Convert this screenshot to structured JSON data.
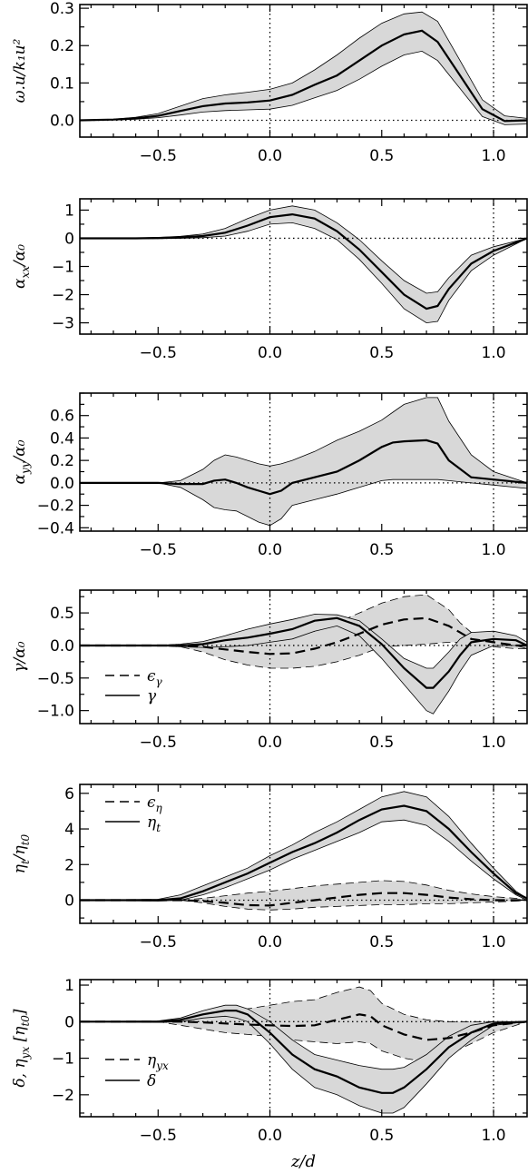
{
  "chart_data": [
    {
      "type": "line",
      "ylabel": "ω.u/k₁u²",
      "xlabel": "",
      "xlim": [
        -0.85,
        1.15
      ],
      "ylim": [
        -0.045,
        0.31
      ],
      "xticks": [
        -0.5,
        0.0,
        0.5,
        1.0
      ],
      "xtick_labels": [
        "−0.5",
        "0.0",
        "0.5",
        "1.0"
      ],
      "yticks": [
        0.0,
        0.1,
        0.2,
        0.3
      ],
      "ytick_labels": [
        "0.0",
        "0.1",
        "0.2",
        "0.3"
      ],
      "vlines": [
        0.0,
        1.0
      ],
      "hlines": [
        0.0
      ],
      "legend": [],
      "series": [
        {
          "style": "solid",
          "x": [
            -0.85,
            -0.7,
            -0.6,
            -0.5,
            -0.4,
            -0.3,
            -0.2,
            -0.1,
            0.0,
            0.1,
            0.2,
            0.3,
            0.4,
            0.5,
            0.6,
            0.68,
            0.75,
            0.85,
            0.95,
            1.05,
            1.15
          ],
          "values": [
            0.0,
            0.002,
            0.005,
            0.012,
            0.025,
            0.038,
            0.045,
            0.048,
            0.053,
            0.068,
            0.095,
            0.12,
            0.16,
            0.2,
            0.23,
            0.24,
            0.21,
            0.12,
            0.03,
            -0.002,
            0.0
          ],
          "band_upper": [
            0.0,
            0.003,
            0.008,
            0.018,
            0.038,
            0.058,
            0.068,
            0.075,
            0.083,
            0.1,
            0.135,
            0.175,
            0.22,
            0.26,
            0.285,
            0.29,
            0.265,
            0.16,
            0.055,
            0.012,
            0.005
          ],
          "band_lower": [
            0.0,
            0.001,
            0.003,
            0.007,
            0.014,
            0.022,
            0.026,
            0.028,
            0.03,
            0.04,
            0.06,
            0.08,
            0.11,
            0.145,
            0.175,
            0.185,
            0.16,
            0.085,
            0.01,
            -0.012,
            -0.01
          ]
        }
      ]
    },
    {
      "type": "line",
      "ylabel": "α_xx/α₀",
      "xlabel": "",
      "xlim": [
        -0.85,
        1.15
      ],
      "ylim": [
        -3.4,
        1.4
      ],
      "xticks": [
        -0.5,
        0.0,
        0.5,
        1.0
      ],
      "xtick_labels": [
        "−0.5",
        "0.0",
        "0.5",
        "1.0"
      ],
      "yticks": [
        1,
        0,
        -1,
        -2,
        -3
      ],
      "ytick_labels": [
        "1",
        "0",
        "−1",
        "−2",
        "−3"
      ],
      "vlines": [
        0.0,
        1.0
      ],
      "hlines": [
        0.0
      ],
      "legend": [],
      "series": [
        {
          "style": "solid",
          "x": [
            -0.85,
            -0.6,
            -0.5,
            -0.4,
            -0.3,
            -0.2,
            -0.1,
            0.0,
            0.1,
            0.2,
            0.3,
            0.4,
            0.5,
            0.6,
            0.7,
            0.75,
            0.8,
            0.9,
            1.0,
            1.15
          ],
          "values": [
            0.0,
            0.0,
            0.01,
            0.03,
            0.08,
            0.2,
            0.45,
            0.75,
            0.85,
            0.7,
            0.25,
            -0.4,
            -1.2,
            -2.0,
            -2.5,
            -2.4,
            -1.8,
            -0.9,
            -0.45,
            0.0
          ],
          "band_upper": [
            0.0,
            0.01,
            0.03,
            0.07,
            0.15,
            0.35,
            0.7,
            1.0,
            1.15,
            1.0,
            0.55,
            -0.05,
            -0.8,
            -1.5,
            -1.95,
            -1.9,
            -1.4,
            -0.6,
            -0.3,
            0.0
          ],
          "band_lower": [
            0.0,
            -0.01,
            -0.01,
            0.0,
            0.02,
            0.08,
            0.25,
            0.5,
            0.55,
            0.35,
            -0.05,
            -0.75,
            -1.6,
            -2.5,
            -3.0,
            -2.95,
            -2.2,
            -1.15,
            -0.6,
            0.0
          ]
        }
      ]
    },
    {
      "type": "line",
      "ylabel": "α_yy/α₀",
      "xlabel": "",
      "xlim": [
        -0.85,
        1.15
      ],
      "ylim": [
        -0.43,
        0.8
      ],
      "xticks": [
        -0.5,
        0.0,
        0.5,
        1.0
      ],
      "xtick_labels": [
        "−0.5",
        "0.0",
        "0.5",
        "1.0"
      ],
      "yticks": [
        0.6,
        0.4,
        0.2,
        0.0,
        -0.2,
        -0.4
      ],
      "ytick_labels": [
        "0.6",
        "0.4",
        "0.2",
        "0.0",
        "−0.2",
        "−0.4"
      ],
      "vlines": [
        0.0,
        1.0
      ],
      "hlines": [
        0.0
      ],
      "legend": [],
      "series": [
        {
          "style": "solid",
          "x": [
            -0.85,
            -0.5,
            -0.4,
            -0.3,
            -0.25,
            -0.2,
            -0.15,
            -0.1,
            -0.05,
            0.0,
            0.05,
            0.1,
            0.2,
            0.3,
            0.4,
            0.5,
            0.55,
            0.6,
            0.7,
            0.75,
            0.8,
            0.9,
            1.0,
            1.15
          ],
          "values": [
            0.0,
            0.0,
            -0.01,
            -0.01,
            0.02,
            0.03,
            0.0,
            -0.04,
            -0.07,
            -0.1,
            -0.07,
            0.0,
            0.05,
            0.1,
            0.2,
            0.32,
            0.36,
            0.37,
            0.38,
            0.35,
            0.2,
            0.05,
            0.03,
            0.0
          ],
          "band_upper": [
            0.0,
            0.0,
            0.02,
            0.12,
            0.2,
            0.25,
            0.23,
            0.2,
            0.17,
            0.15,
            0.17,
            0.2,
            0.28,
            0.38,
            0.46,
            0.56,
            0.63,
            0.7,
            0.76,
            0.76,
            0.55,
            0.25,
            0.1,
            0.0
          ],
          "band_lower": [
            0.0,
            0.0,
            -0.04,
            -0.15,
            -0.22,
            -0.24,
            -0.25,
            -0.3,
            -0.35,
            -0.38,
            -0.32,
            -0.2,
            -0.15,
            -0.1,
            -0.04,
            0.02,
            0.03,
            0.03,
            0.03,
            0.03,
            0.02,
            0.0,
            -0.02,
            -0.05
          ]
        }
      ]
    },
    {
      "type": "line",
      "ylabel": "γ/α₀",
      "xlabel": "",
      "xlim": [
        -0.85,
        1.15
      ],
      "ylim": [
        -1.2,
        0.85
      ],
      "xticks": [
        -0.5,
        0.0,
        0.5,
        1.0
      ],
      "xtick_labels": [
        "−0.5",
        "0.0",
        "0.5",
        "1.0"
      ],
      "yticks": [
        0.5,
        0.0,
        -0.5,
        -1.0
      ],
      "ytick_labels": [
        "0.5",
        "0.0",
        "−0.5",
        "−1.0"
      ],
      "vlines": [
        0.0,
        1.0
      ],
      "hlines": [
        0.0
      ],
      "legend": [
        "ϵ_γ",
        "γ"
      ],
      "series": [
        {
          "name": "ϵ_γ",
          "style": "dashed",
          "x": [
            -0.85,
            -0.5,
            -0.4,
            -0.3,
            -0.2,
            -0.1,
            0.0,
            0.1,
            0.2,
            0.3,
            0.4,
            0.5,
            0.6,
            0.7,
            0.8,
            0.85,
            0.9,
            1.0,
            1.1,
            1.15
          ],
          "values": [
            0.0,
            0.0,
            0.0,
            -0.02,
            -0.06,
            -0.1,
            -0.13,
            -0.12,
            -0.05,
            0.05,
            0.18,
            0.32,
            0.4,
            0.42,
            0.3,
            0.2,
            0.1,
            0.05,
            0.0,
            0.0
          ],
          "band_upper": [
            0.0,
            0.0,
            0.02,
            0.05,
            0.1,
            0.1,
            0.1,
            0.12,
            0.22,
            0.35,
            0.5,
            0.65,
            0.75,
            0.78,
            0.55,
            0.35,
            0.2,
            0.15,
            0.1,
            0.05
          ],
          "band_lower": [
            0.0,
            0.0,
            -0.02,
            -0.1,
            -0.22,
            -0.3,
            -0.35,
            -0.35,
            -0.32,
            -0.25,
            -0.15,
            -0.02,
            0.0,
            0.02,
            0.05,
            0.05,
            0.02,
            -0.02,
            -0.05,
            -0.05
          ]
        },
        {
          "name": "γ",
          "style": "solid",
          "x": [
            -0.85,
            -0.5,
            -0.4,
            -0.3,
            -0.2,
            -0.1,
            0.0,
            0.1,
            0.2,
            0.3,
            0.4,
            0.5,
            0.6,
            0.7,
            0.73,
            0.8,
            0.85,
            0.9,
            1.0,
            1.1,
            1.15
          ],
          "values": [
            0.0,
            0.0,
            0.0,
            0.02,
            0.08,
            0.12,
            0.18,
            0.25,
            0.38,
            0.42,
            0.3,
            0.02,
            -0.35,
            -0.65,
            -0.65,
            -0.4,
            -0.15,
            0.05,
            0.1,
            0.08,
            0.0
          ],
          "band_upper": [
            0.0,
            0.0,
            0.02,
            0.06,
            0.15,
            0.25,
            0.33,
            0.4,
            0.48,
            0.47,
            0.38,
            0.1,
            -0.2,
            -0.35,
            -0.35,
            -0.1,
            0.1,
            0.2,
            0.22,
            0.15,
            0.05
          ],
          "band_lower": [
            0.0,
            0.0,
            -0.02,
            -0.03,
            -0.02,
            0.0,
            0.05,
            0.1,
            0.22,
            0.3,
            0.15,
            -0.2,
            -0.6,
            -1.0,
            -1.05,
            -0.7,
            -0.4,
            -0.15,
            0.0,
            0.0,
            -0.05
          ]
        }
      ]
    },
    {
      "type": "line",
      "ylabel": "η_t/η_t0",
      "xlabel": "",
      "xlim": [
        -0.85,
        1.15
      ],
      "ylim": [
        -1.3,
        6.5
      ],
      "xticks": [
        -0.5,
        0.0,
        0.5,
        1.0
      ],
      "xtick_labels": [
        "−0.5",
        "0.0",
        "0.5",
        "1.0"
      ],
      "yticks": [
        6,
        4,
        2,
        0
      ],
      "ytick_labels": [
        "6",
        "4",
        "2",
        "0"
      ],
      "vlines": [
        0.0,
        1.0
      ],
      "hlines": [
        0.0
      ],
      "legend": [
        "ϵ_η",
        "η_t"
      ],
      "series": [
        {
          "name": "ϵ_η",
          "style": "dashed",
          "x": [
            -0.85,
            -0.4,
            -0.3,
            -0.2,
            -0.1,
            0.0,
            0.1,
            0.2,
            0.3,
            0.4,
            0.5,
            0.6,
            0.7,
            0.8,
            0.9,
            1.0,
            1.1,
            1.15
          ],
          "values": [
            0.0,
            0.0,
            -0.05,
            -0.15,
            -0.28,
            -0.3,
            -0.15,
            0.0,
            0.15,
            0.3,
            0.4,
            0.4,
            0.3,
            0.15,
            0.05,
            0.0,
            0.0,
            0.0
          ],
          "band_upper": [
            0.0,
            0.0,
            0.1,
            0.25,
            0.4,
            0.5,
            0.65,
            0.8,
            0.9,
            1.0,
            1.1,
            1.05,
            0.85,
            0.55,
            0.35,
            0.2,
            0.1,
            0.05
          ],
          "band_lower": [
            0.0,
            0.0,
            -0.15,
            -0.35,
            -0.5,
            -0.55,
            -0.5,
            -0.4,
            -0.35,
            -0.3,
            -0.25,
            -0.25,
            -0.2,
            -0.2,
            -0.15,
            -0.1,
            -0.05,
            0.0
          ]
        },
        {
          "name": "η_t",
          "style": "solid",
          "x": [
            -0.85,
            -0.5,
            -0.4,
            -0.3,
            -0.2,
            -0.1,
            0.0,
            0.1,
            0.2,
            0.3,
            0.4,
            0.5,
            0.6,
            0.7,
            0.8,
            0.9,
            1.0,
            1.1,
            1.15
          ],
          "values": [
            0.0,
            0.0,
            0.1,
            0.5,
            1.0,
            1.5,
            2.1,
            2.7,
            3.2,
            3.8,
            4.5,
            5.1,
            5.3,
            5.0,
            4.0,
            2.7,
            1.5,
            0.4,
            0.1
          ],
          "band_upper": [
            0.0,
            0.05,
            0.3,
            0.8,
            1.3,
            1.8,
            2.5,
            3.1,
            3.8,
            4.4,
            5.1,
            5.8,
            6.1,
            5.8,
            4.7,
            3.2,
            1.8,
            0.5,
            0.1
          ],
          "band_lower": [
            0.0,
            -0.05,
            0.0,
            0.3,
            0.7,
            1.2,
            1.7,
            2.3,
            2.8,
            3.3,
            3.8,
            4.4,
            4.5,
            4.2,
            3.3,
            2.2,
            1.2,
            0.3,
            0.0
          ]
        }
      ]
    },
    {
      "type": "line",
      "ylabel": "δ, η_yx [η_t0]",
      "xlabel": "z/d",
      "xlim": [
        -0.85,
        1.15
      ],
      "ylim": [
        -2.6,
        1.15
      ],
      "xticks": [
        -0.5,
        0.0,
        0.5,
        1.0
      ],
      "xtick_labels": [
        "−0.5",
        "0.0",
        "0.5",
        "1.0"
      ],
      "yticks": [
        1,
        0,
        -1,
        -2
      ],
      "ytick_labels": [
        "1",
        "0",
        "−1",
        "−2"
      ],
      "vlines": [
        0.0,
        1.0
      ],
      "hlines": [
        0.0
      ],
      "legend": [
        "η_yx",
        "δ"
      ],
      "series": [
        {
          "name": "η_yx",
          "style": "dashed",
          "x": [
            -0.85,
            -0.5,
            -0.4,
            -0.3,
            -0.2,
            -0.1,
            0.0,
            0.1,
            0.2,
            0.3,
            0.4,
            0.45,
            0.5,
            0.6,
            0.7,
            0.8,
            0.9,
            1.0,
            1.15
          ],
          "values": [
            0.0,
            0.0,
            0.0,
            -0.02,
            -0.05,
            -0.08,
            -0.1,
            -0.12,
            -0.1,
            0.05,
            0.2,
            0.15,
            -0.1,
            -0.35,
            -0.5,
            -0.45,
            -0.3,
            -0.1,
            0.0
          ],
          "band_upper": [
            0.0,
            0.0,
            0.05,
            0.15,
            0.25,
            0.35,
            0.45,
            0.55,
            0.6,
            0.8,
            0.95,
            0.85,
            0.5,
            0.2,
            0.05,
            0.0,
            0.0,
            0.0,
            0.0
          ],
          "band_lower": [
            0.0,
            0.0,
            -0.1,
            -0.2,
            -0.3,
            -0.35,
            -0.4,
            -0.5,
            -0.55,
            -0.6,
            -0.55,
            -0.6,
            -0.8,
            -1.0,
            -1.1,
            -0.9,
            -0.6,
            -0.3,
            0.0
          ]
        },
        {
          "name": "δ",
          "style": "solid",
          "x": [
            -0.85,
            -0.5,
            -0.4,
            -0.3,
            -0.2,
            -0.15,
            -0.1,
            0.0,
            0.1,
            0.2,
            0.3,
            0.4,
            0.5,
            0.55,
            0.6,
            0.7,
            0.8,
            0.9,
            1.0,
            1.15
          ],
          "values": [
            0.0,
            0.0,
            0.05,
            0.2,
            0.3,
            0.3,
            0.2,
            -0.3,
            -0.9,
            -1.3,
            -1.5,
            -1.8,
            -1.95,
            -1.95,
            -1.8,
            -1.3,
            -0.7,
            -0.3,
            -0.05,
            0.0
          ],
          "band_upper": [
            0.0,
            0.02,
            0.1,
            0.3,
            0.45,
            0.45,
            0.35,
            0.0,
            -0.5,
            -0.9,
            -1.05,
            -1.2,
            -1.3,
            -1.3,
            -1.25,
            -0.9,
            -0.4,
            -0.1,
            0.0,
            0.0
          ],
          "band_lower": [
            0.0,
            -0.02,
            0.0,
            0.1,
            0.15,
            0.1,
            0.0,
            -0.6,
            -1.3,
            -1.8,
            -2.0,
            -2.3,
            -2.5,
            -2.5,
            -2.35,
            -1.7,
            -1.0,
            -0.5,
            -0.1,
            0.0
          ]
        }
      ]
    }
  ]
}
